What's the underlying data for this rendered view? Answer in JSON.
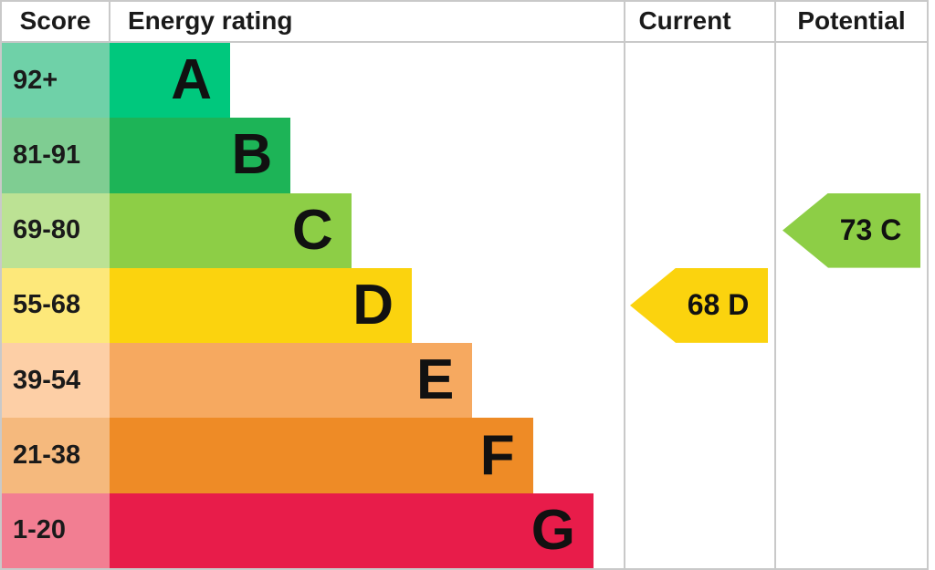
{
  "header": {
    "score": "Score",
    "energy_rating": "Energy rating",
    "current": "Current",
    "potential": "Potential"
  },
  "bands": [
    {
      "score": "92+",
      "letter": "A",
      "color": "#00c87d",
      "score_bg": "#6fd1a8"
    },
    {
      "score": "81-91",
      "letter": "B",
      "color": "#1db457",
      "score_bg": "#7fcd92"
    },
    {
      "score": "69-80",
      "letter": "C",
      "color": "#8dce46",
      "score_bg": "#bce294"
    },
    {
      "score": "55-68",
      "letter": "D",
      "color": "#fbd30e",
      "score_bg": "#fde87a"
    },
    {
      "score": "39-54",
      "letter": "E",
      "color": "#f6a960",
      "score_bg": "#fdcfa6"
    },
    {
      "score": "21-38",
      "letter": "F",
      "color": "#ee8b26",
      "score_bg": "#f5b97d"
    },
    {
      "score": "1-20",
      "letter": "G",
      "color": "#e81c4a",
      "score_bg": "#f27e92"
    }
  ],
  "current": {
    "label": "68 D",
    "value": 68,
    "band": "D",
    "color": "#fbd30e",
    "row": 3
  },
  "potential": {
    "label": "73 C",
    "value": 73,
    "band": "C",
    "color": "#8dce46",
    "row": 2
  },
  "chart_data": {
    "type": "bar",
    "title": "EPC energy efficiency rating chart",
    "columns": [
      "Score",
      "Energy rating",
      "Current",
      "Potential"
    ],
    "categories": [
      "A",
      "B",
      "C",
      "D",
      "E",
      "F",
      "G"
    ],
    "score_ranges": [
      "92+",
      "81-91",
      "69-80",
      "55-68",
      "39-54",
      "21-38",
      "1-20"
    ],
    "band_colors": [
      "#00c87d",
      "#1db457",
      "#8dce46",
      "#fbd30e",
      "#f6a960",
      "#ee8b26",
      "#e81c4a"
    ],
    "bar_relative_lengths": [
      1,
      2,
      3,
      4,
      5,
      6,
      7
    ],
    "current": {
      "score": 68,
      "band": "D"
    },
    "potential": {
      "score": 73,
      "band": "C"
    },
    "legend_position": "none",
    "grid": false
  }
}
